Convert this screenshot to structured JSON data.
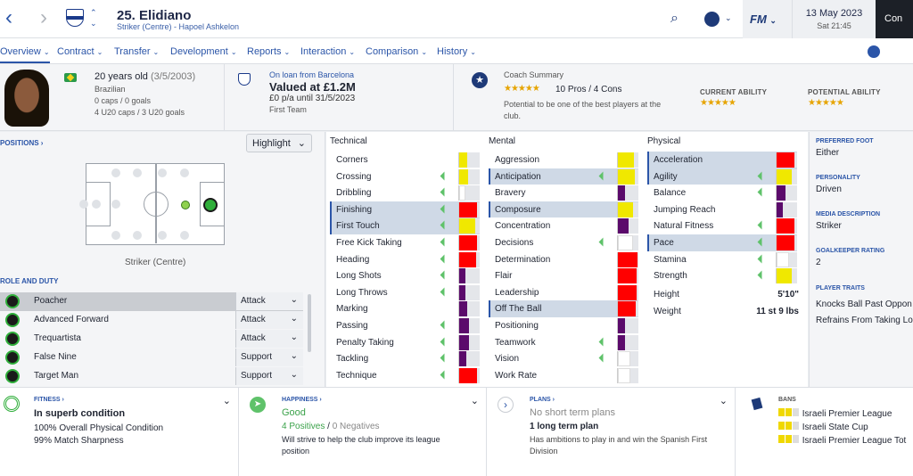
{
  "header": {
    "player_title": "25. Elidiano",
    "player_subtitle": "Striker (Centre) - Hapoel Ashkelon",
    "brand": "FM",
    "date": "13 May 2023",
    "time": "Sat 21:45",
    "continue_label": "Con"
  },
  "tabs": [
    {
      "label": "Overview"
    },
    {
      "label": "Contract"
    },
    {
      "label": "Transfer"
    },
    {
      "label": "Development"
    },
    {
      "label": "Reports"
    },
    {
      "label": "Interaction"
    },
    {
      "label": "Comparison"
    },
    {
      "label": "History"
    }
  ],
  "bio": {
    "age": "20 years old",
    "dob": "(3/5/2003)",
    "nationality": "Brazilian",
    "caps": "0 caps / 0 goals",
    "u20": "4 U20 caps / 3 U20 goals"
  },
  "loan": {
    "link": "On loan from Barcelona",
    "value": "Valued at £1.2M",
    "wage": "£0 p/a until 31/5/2023",
    "squad": "First Team"
  },
  "coach": {
    "heading": "Coach Summary",
    "pros_cons": "10 Pros / 4 Cons",
    "summary": "Potential to be one of the best players at the club.",
    "current_label": "CURRENT ABILITY",
    "potential_label": "POTENTIAL ABILITY",
    "current_stars": 4.5,
    "potential_stars": 4.5,
    "summary_stars": 4.5
  },
  "positions": {
    "link": "POSITIONS",
    "highlight": "Highlight",
    "label": "Striker (Centre)"
  },
  "roles": {
    "heading": "ROLE AND DUTY",
    "items": [
      {
        "name": "Poacher",
        "duty": "Attack"
      },
      {
        "name": "Advanced Forward",
        "duty": "Attack"
      },
      {
        "name": "Trequartista",
        "duty": "Attack"
      },
      {
        "name": "False Nine",
        "duty": "Support"
      },
      {
        "name": "Target Man",
        "duty": "Support"
      }
    ]
  },
  "attributes": {
    "technical_heading": "Technical",
    "mental_heading": "Mental",
    "physical_heading": "Physical",
    "technical": [
      {
        "name": "Corners",
        "level": 0.4,
        "color": "#f0e800",
        "key": false,
        "trend": false
      },
      {
        "name": "Crossing",
        "level": 0.45,
        "color": "#f0e800",
        "key": false,
        "trend": true
      },
      {
        "name": "Dribbling",
        "level": 0.3,
        "color": "#ffffff",
        "key": false,
        "trend": true
      },
      {
        "name": "Finishing",
        "level": 0.9,
        "color": "#ff0000",
        "key": true,
        "trend": true
      },
      {
        "name": "First Touch",
        "level": 0.8,
        "color": "#f0e800",
        "key": true,
        "trend": true
      },
      {
        "name": "Free Kick Taking",
        "level": 0.9,
        "color": "#ff0000",
        "key": false,
        "trend": true
      },
      {
        "name": "Heading",
        "level": 0.85,
        "color": "#ff0000",
        "key": false,
        "trend": true
      },
      {
        "name": "Long Shots",
        "level": 0.3,
        "color": "#5b0a6b",
        "key": false,
        "trend": true
      },
      {
        "name": "Long Throws",
        "level": 0.3,
        "color": "#5b0a6b",
        "key": false,
        "trend": true
      },
      {
        "name": "Marking",
        "level": 0.4,
        "color": "#5b0a6b",
        "key": false,
        "trend": false
      },
      {
        "name": "Passing",
        "level": 0.5,
        "color": "#5b0a6b",
        "key": false,
        "trend": true
      },
      {
        "name": "Penalty Taking",
        "level": 0.5,
        "color": "#5b0a6b",
        "key": false,
        "trend": true
      },
      {
        "name": "Tackling",
        "level": 0.35,
        "color": "#5b0a6b",
        "key": false,
        "trend": true
      },
      {
        "name": "Technique",
        "level": 0.9,
        "color": "#ff0000",
        "key": false,
        "trend": true
      }
    ],
    "mental": [
      {
        "name": "Aggression",
        "level": 0.8,
        "color": "#f0e800",
        "key": false,
        "trend": false
      },
      {
        "name": "Anticipation",
        "level": 0.85,
        "color": "#f0e800",
        "key": true,
        "trend": true
      },
      {
        "name": "Bravery",
        "level": 0.35,
        "color": "#5b0a6b",
        "key": false,
        "trend": false
      },
      {
        "name": "Composure",
        "level": 0.75,
        "color": "#f0e800",
        "key": true,
        "trend": false
      },
      {
        "name": "Concentration",
        "level": 0.55,
        "color": "#5b0a6b",
        "key": false,
        "trend": false
      },
      {
        "name": "Decisions",
        "level": 0.75,
        "color": "#ffffff",
        "key": false,
        "trend": true
      },
      {
        "name": "Determination",
        "level": 1.0,
        "color": "#ff0000",
        "key": false,
        "trend": false
      },
      {
        "name": "Flair",
        "level": 0.95,
        "color": "#ff0000",
        "key": false,
        "trend": false
      },
      {
        "name": "Leadership",
        "level": 0.95,
        "color": "#ff0000",
        "key": false,
        "trend": false
      },
      {
        "name": "Off The Ball",
        "level": 0.9,
        "color": "#ff0000",
        "key": true,
        "trend": false
      },
      {
        "name": "Positioning",
        "level": 0.35,
        "color": "#5b0a6b",
        "key": false,
        "trend": false
      },
      {
        "name": "Teamwork",
        "level": 0.35,
        "color": "#5b0a6b",
        "key": false,
        "trend": true
      },
      {
        "name": "Vision",
        "level": 0.65,
        "color": "#ffffff",
        "key": false,
        "trend": true
      },
      {
        "name": "Work Rate",
        "level": 0.65,
        "color": "#ffffff",
        "key": false,
        "trend": false
      }
    ],
    "physical": [
      {
        "name": "Acceleration",
        "level": 0.9,
        "color": "#ff0000",
        "key": true,
        "trend": false
      },
      {
        "name": "Agility",
        "level": 0.75,
        "color": "#f0e800",
        "key": true,
        "trend": true
      },
      {
        "name": "Balance",
        "level": 0.45,
        "color": "#5b0a6b",
        "key": false,
        "trend": true
      },
      {
        "name": "Jumping Reach",
        "level": 0.3,
        "color": "#5b0a6b",
        "key": false,
        "trend": false
      },
      {
        "name": "Natural Fitness",
        "level": 0.9,
        "color": "#ff0000",
        "key": false,
        "trend": true
      },
      {
        "name": "Pace",
        "level": 0.9,
        "color": "#ff0000",
        "key": true,
        "trend": true
      },
      {
        "name": "Stamina",
        "level": 0.65,
        "color": "#ffffff",
        "key": false,
        "trend": true
      },
      {
        "name": "Strength",
        "level": 0.75,
        "color": "#f0e800",
        "key": false,
        "trend": true
      }
    ],
    "height_label": "Height",
    "height_value": "5'10\"",
    "weight_label": "Weight",
    "weight_value": "11 st 9 lbs"
  },
  "profile": {
    "foot_h": "PREFERRED FOOT",
    "foot": "Either",
    "personality_h": "PERSONALITY",
    "personality": "Driven",
    "media_h": "MEDIA DESCRIPTION",
    "media": "Striker",
    "gk_h": "GOALKEEPER RATING",
    "gk": "2",
    "traits_h": "PLAYER TRAITS",
    "trait1": "Knocks Ball Past Oppon",
    "trait2": "Refrains From Taking Lo"
  },
  "fitness": {
    "h": "FITNESS",
    "title": "In superb condition",
    "l1": "100% Overall Physical Condition",
    "l2": "99% Match Sharpness"
  },
  "happiness": {
    "h": "HAPPINESS",
    "title": "Good",
    "pos": "4 Positives",
    "sep": " / ",
    "neg": "0 Negatives",
    "desc": "Will strive to help the club improve its league position"
  },
  "plans": {
    "h": "PLANS",
    "title": "No short term plans",
    "sub": "1 long term plan",
    "desc": "Has ambitions to play in and win the Spanish First Division"
  },
  "bans": {
    "h": "BANS",
    "items": [
      "Israeli Premier League",
      "Israeli State Cup",
      "Israeli Premier League Tot"
    ]
  }
}
